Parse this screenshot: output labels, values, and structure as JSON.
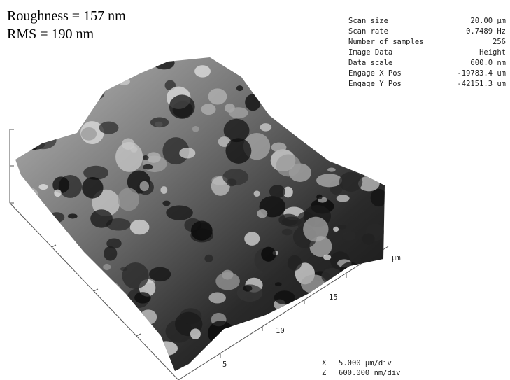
{
  "header": {
    "roughness": "Roughness = 157 nm",
    "rms": "RMS = 190 nm"
  },
  "parameters": [
    {
      "label": "Scan size",
      "value": "20.00 µm"
    },
    {
      "label": "Scan rate",
      "value": "0.7489 Hz"
    },
    {
      "label": "Number of samples",
      "value": "256"
    },
    {
      "label": "Image Data",
      "value": "Height"
    },
    {
      "label": "Data scale",
      "value": "600.0 nm"
    },
    {
      "label": "Engage X Pos",
      "value": "-19783.4 um"
    },
    {
      "label": "Engage Y Pos",
      "value": "-42151.3 um"
    }
  ],
  "axis": {
    "unit": "µm",
    "ticks": [
      "15",
      "10",
      "5"
    ]
  },
  "scale": [
    {
      "axis": "X",
      "value": "5.000 µm/div"
    },
    {
      "axis": "Z",
      "value": "600.000 nm/div"
    }
  ]
}
